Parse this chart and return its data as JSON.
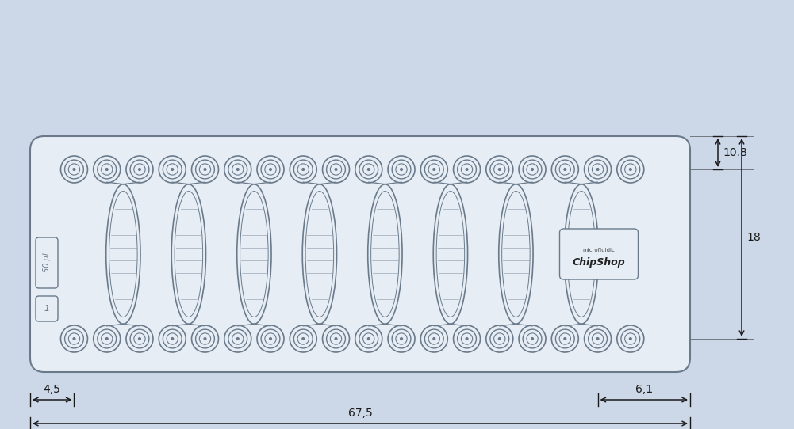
{
  "bg_color": "#ccd7e8",
  "chip_color": "#e6edf5",
  "line_color": "#6a7a8a",
  "dim_color": "#1a1a1a",
  "n_chambers": 8,
  "label_50ul": "50 μl",
  "label_num": "1",
  "dim_45": "4,5",
  "dim_675": "67,5",
  "dim_61": "6,1",
  "dim_108": "10.8",
  "dim_18": "18",
  "brand_line1": "microfluidic",
  "brand_line2": "ChipShop"
}
